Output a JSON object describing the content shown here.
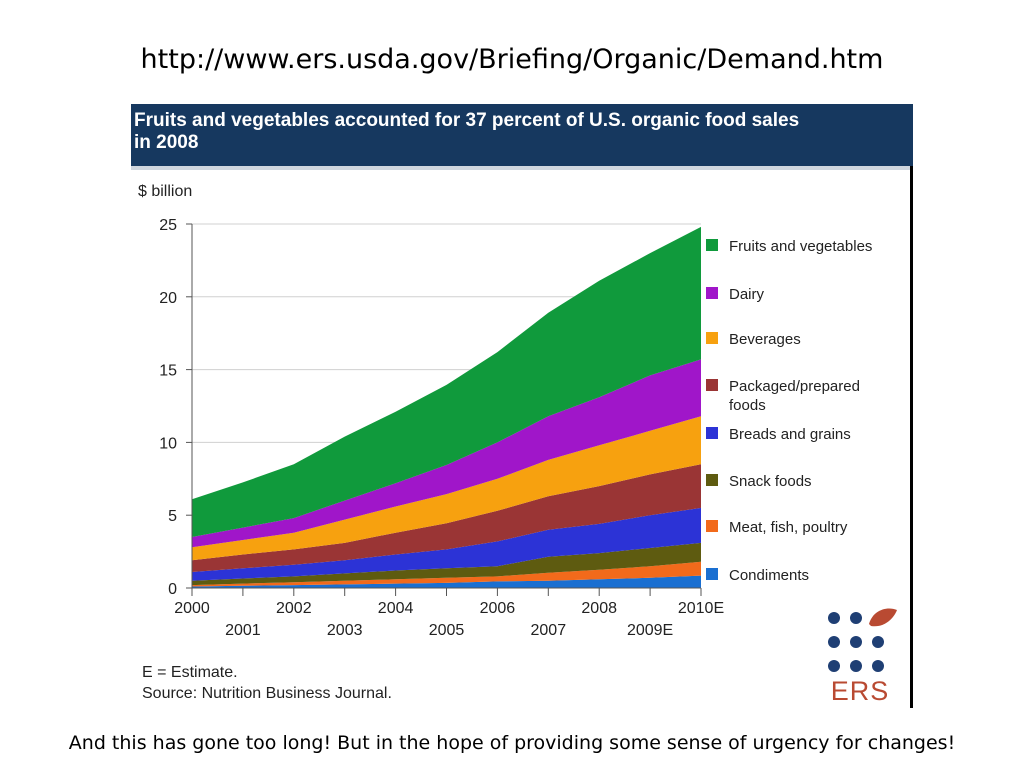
{
  "slide": {
    "title": "http://www.ers.usda.gov/Briefing/Organic/Demand.htm",
    "caption": "And this has gone too long!  But in the hope of providing some sense of urgency for changes!"
  },
  "figure": {
    "header_line1": "Fruits and vegetables accounted for 37 percent of U.S. organic food sales",
    "header_line2": "in 2008",
    "note_estimate": "E =  Estimate.",
    "note_source": "Source: Nutrition Business Journal.",
    "logo_text": "ERS",
    "logo_color": "#b94a32",
    "header_color": "#16385f"
  },
  "chart_data": {
    "type": "area",
    "stacked": true,
    "ylabel": "$ billion",
    "ylim": [
      0,
      25
    ],
    "yticks": [
      0,
      5,
      10,
      15,
      20,
      25
    ],
    "categories": [
      "2000",
      "2001",
      "2002",
      "2003",
      "2004",
      "2005",
      "2006",
      "2007",
      "2008",
      "2009E",
      "2010E"
    ],
    "grid": true,
    "legend_position": "right",
    "series": [
      {
        "name": "Condiments",
        "color": "#1a6fd1",
        "values": [
          0.1,
          0.15,
          0.2,
          0.25,
          0.3,
          0.35,
          0.45,
          0.5,
          0.6,
          0.7,
          0.85
        ]
      },
      {
        "name": "Meat, fish, poultry",
        "color": "#f26a1b",
        "values": [
          0.1,
          0.15,
          0.2,
          0.25,
          0.3,
          0.35,
          0.35,
          0.55,
          0.65,
          0.8,
          0.95
        ]
      },
      {
        "name": "Snack foods",
        "color": "#5e5b10",
        "values": [
          0.3,
          0.35,
          0.4,
          0.5,
          0.6,
          0.65,
          0.7,
          1.1,
          1.15,
          1.25,
          1.3
        ]
      },
      {
        "name": "Breads and grains",
        "color": "#2c33d6",
        "values": [
          0.6,
          0.7,
          0.8,
          0.9,
          1.1,
          1.3,
          1.7,
          1.85,
          2.0,
          2.25,
          2.4
        ]
      },
      {
        "name": "Packaged/prepared foods",
        "color": "#9a3535",
        "values": [
          0.8,
          0.95,
          1.05,
          1.2,
          1.5,
          1.8,
          2.1,
          2.3,
          2.6,
          2.8,
          3.0
        ]
      },
      {
        "name": "Beverages",
        "color": "#f7a10f",
        "values": [
          0.9,
          1.0,
          1.15,
          1.6,
          1.8,
          2.0,
          2.2,
          2.5,
          2.8,
          3.0,
          3.3
        ]
      },
      {
        "name": "Dairy",
        "color": "#a016c9",
        "values": [
          0.7,
          0.85,
          1.0,
          1.3,
          1.6,
          2.0,
          2.5,
          3.0,
          3.3,
          3.8,
          3.9
        ]
      },
      {
        "name": "Fruits and vegetables",
        "color": "#109a3c",
        "values": [
          2.6,
          3.1,
          3.7,
          4.4,
          4.9,
          5.5,
          6.2,
          7.1,
          8.0,
          8.4,
          9.1
        ]
      }
    ],
    "legend_order": [
      "Fruits and vegetables",
      "Dairy",
      "Beverages",
      "Packaged/prepared foods",
      "Breads and grains",
      "Snack foods",
      "Meat, fish, poultry",
      "Condiments"
    ]
  }
}
